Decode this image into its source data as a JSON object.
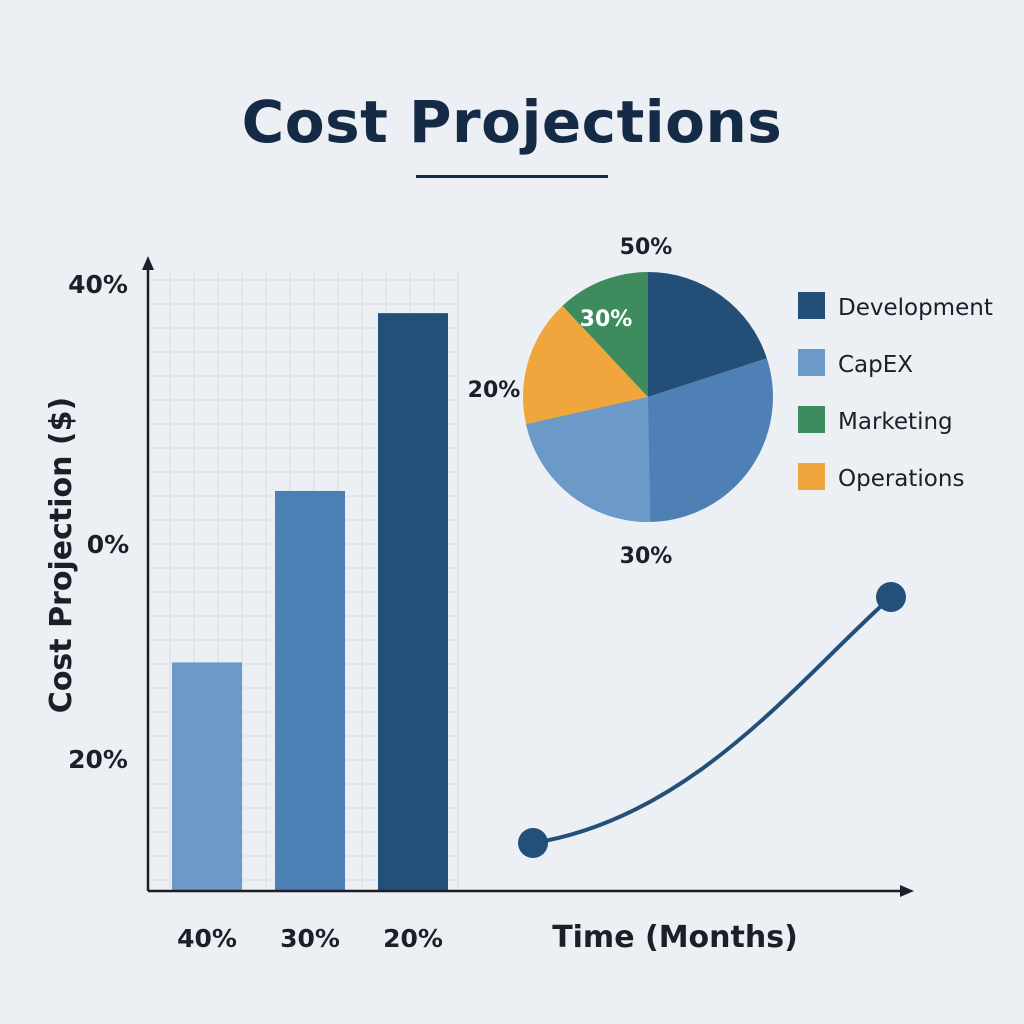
{
  "title": "Cost Projections",
  "chart_data": [
    {
      "type": "bar",
      "ylabel": "Cost Projection ($)",
      "y_tick_labels": [
        "40%",
        "0%",
        "20%"
      ],
      "categories": [
        "40%",
        "30%",
        "20%"
      ],
      "values": [
        36,
        63,
        91
      ],
      "ylim": [
        0,
        100
      ],
      "grid": true,
      "colors": [
        "#6b9ac8",
        "#4c7fb3",
        "#23507a"
      ]
    },
    {
      "type": "pie",
      "slices": [
        {
          "label": "Development",
          "value": 20,
          "color": "#234e78"
        },
        {
          "label": "CapEX",
          "value": 50,
          "color": "#4e80b5"
        },
        {
          "label": "Operations",
          "value": 18,
          "color": "#f0a63d"
        },
        {
          "label": "Marketing",
          "value": 12,
          "color": "#3e8b5e"
        }
      ],
      "printed_labels": {
        "top": "50%",
        "inner": "30%",
        "left": "20%",
        "bottom": "30%"
      },
      "legend": [
        {
          "label": "Development",
          "color": "#234e78"
        },
        {
          "label": "CapEX",
          "color": "#6b9ac8"
        },
        {
          "label": "Marketing",
          "color": "#3e8b5e"
        },
        {
          "label": "Operations",
          "color": "#f0a63d"
        }
      ],
      "legend_placement": "right"
    },
    {
      "type": "line",
      "xlabel": "Time (Months)",
      "x": [
        0,
        1
      ],
      "y": [
        0,
        1
      ],
      "curve": "convex",
      "color": "#23507a"
    }
  ]
}
